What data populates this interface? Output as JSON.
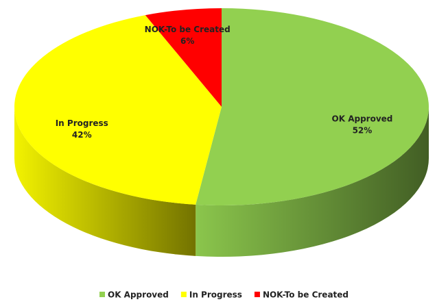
{
  "chart_data": {
    "type": "pie",
    "categories": [
      "OK Approved",
      "In Progress",
      "NOK-To be Created"
    ],
    "values": [
      52,
      42,
      6
    ],
    "value_labels": [
      "52%",
      "42%",
      "6%"
    ],
    "colors": [
      "#92d050",
      "#ffff00",
      "#ff0000"
    ],
    "legend": "bottom"
  }
}
